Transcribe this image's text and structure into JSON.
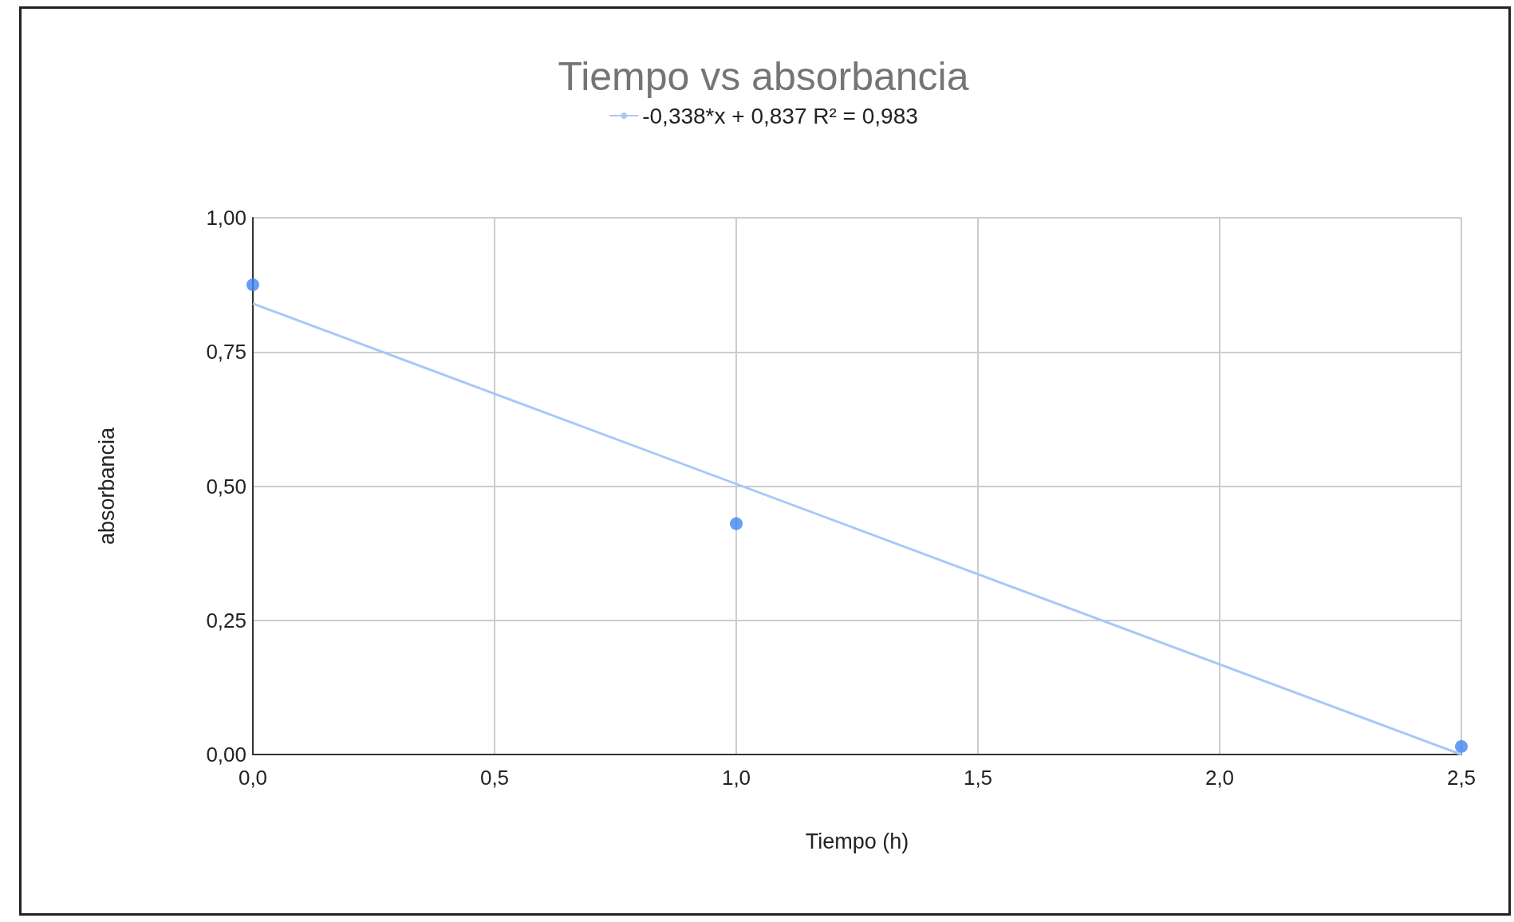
{
  "chart_data": {
    "type": "scatter",
    "title": "Tiempo vs absorbancia",
    "xlabel": "Tiempo (h)",
    "ylabel": "absorbancia",
    "x": [
      0,
      1,
      2.5
    ],
    "series": [
      {
        "color": "#4285f4",
        "values": [
          0.875,
          0.43,
          0.015
        ]
      },
      {
        "type": "line",
        "name": "-0,338*x + 0,837 R² = 0,983",
        "color": "#a9c8f7",
        "x": [
          0,
          2.5
        ],
        "values": [
          0.84,
          0.0
        ],
        "marker": "none"
      }
    ],
    "xlim": [
      0,
      2.5
    ],
    "xticks": [
      {
        "value": 0,
        "label": "0,0"
      },
      {
        "value": 0.5,
        "label": "0,5"
      },
      {
        "value": 1,
        "label": "1,0"
      },
      {
        "value": 1.5,
        "label": "1,5"
      },
      {
        "value": 2,
        "label": "2,0"
      },
      {
        "value": 2.5,
        "label": "2,5"
      }
    ],
    "ylim": [
      0,
      1
    ],
    "yticks": [
      {
        "value": 0,
        "label": "0,00"
      },
      {
        "value": 0.25,
        "label": "0,25"
      },
      {
        "value": 0.5,
        "label": "0,50"
      },
      {
        "value": 0.75,
        "label": "0,75"
      },
      {
        "value": 1,
        "label": "1,00"
      }
    ],
    "grid": true,
    "legend": "top",
    "marker": "circle"
  }
}
